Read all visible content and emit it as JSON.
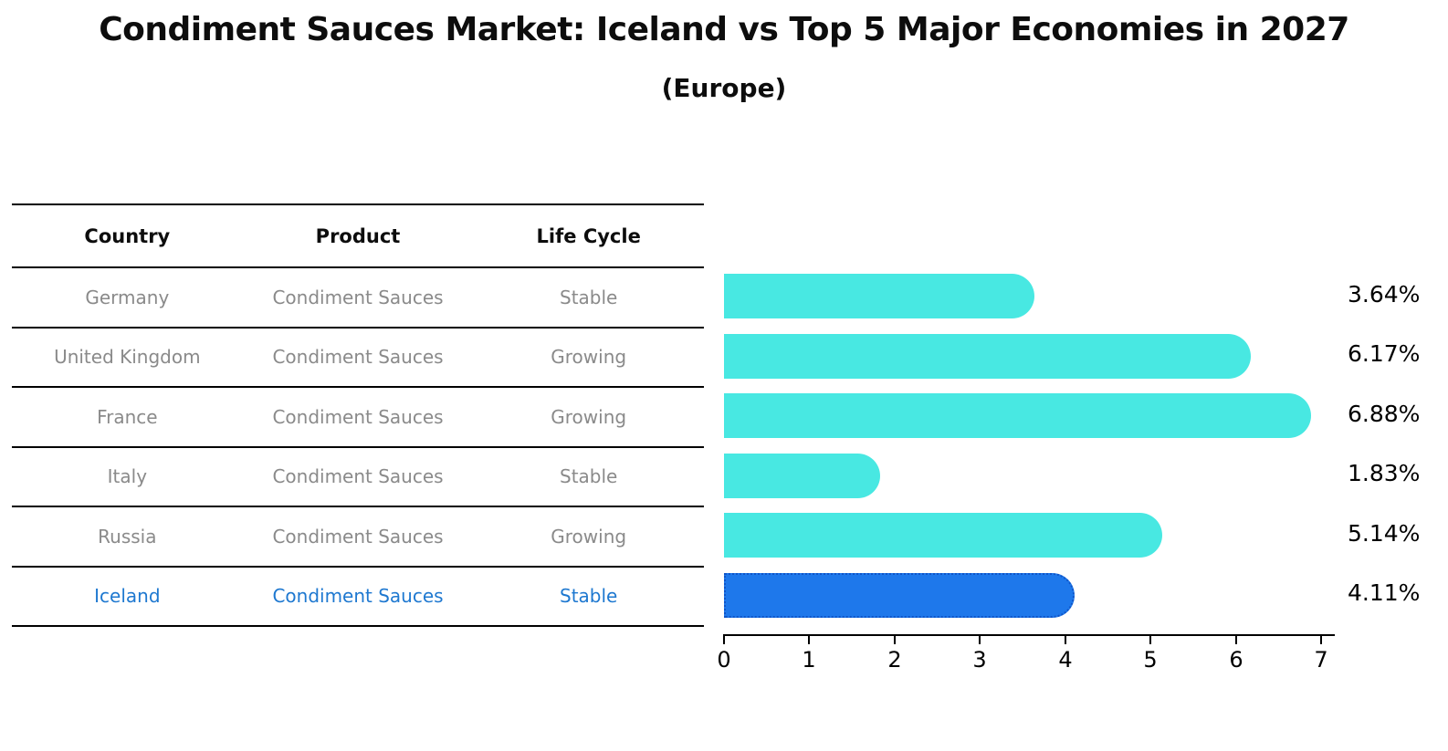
{
  "title": "Condiment Sauces Market: Iceland vs Top 5 Major Economies in 2027",
  "subtitle": "(Europe)",
  "colors": {
    "bar": "#48e8e2",
    "highlight_bar": "#1e78eb",
    "highlight_border": "#1055c8",
    "row_text": "#8a8a8a",
    "highlight_text": "#1e78d0",
    "axis": "#000000"
  },
  "table": {
    "headers": [
      "Country",
      "Product",
      "Life Cycle"
    ],
    "rows": [
      {
        "country": "Germany",
        "product": "Condiment Sauces",
        "life_cycle": "Stable"
      },
      {
        "country": "United Kingdom",
        "product": "Condiment Sauces",
        "life_cycle": "Growing"
      },
      {
        "country": "France",
        "product": "Condiment Sauces",
        "life_cycle": "Growing"
      },
      {
        "country": "Italy",
        "product": "Condiment Sauces",
        "life_cycle": "Stable"
      },
      {
        "country": "Russia",
        "product": "Condiment Sauces",
        "life_cycle": "Growing"
      },
      {
        "country": "Iceland",
        "product": "Condiment Sauces",
        "life_cycle": "Stable"
      }
    ]
  },
  "chart_data": {
    "type": "bar",
    "orientation": "horizontal",
    "title": "Condiment Sauces Market: Iceland vs Top 5 Major Economies in 2027 (Europe)",
    "categories": [
      "Germany",
      "United Kingdom",
      "France",
      "Italy",
      "Russia",
      "Iceland"
    ],
    "values": [
      3.64,
      6.17,
      6.88,
      1.83,
      5.14,
      4.11
    ],
    "labels": [
      "3.64%",
      "6.17%",
      "6.88%",
      "1.83%",
      "5.14%",
      "4.11%"
    ],
    "highlight_index": 5,
    "xlabel": "",
    "ylabel": "",
    "xlim": [
      0,
      7.2
    ],
    "xticks": [
      0,
      1,
      2,
      3,
      4,
      5,
      6,
      7
    ],
    "grid": false,
    "legend": false
  }
}
